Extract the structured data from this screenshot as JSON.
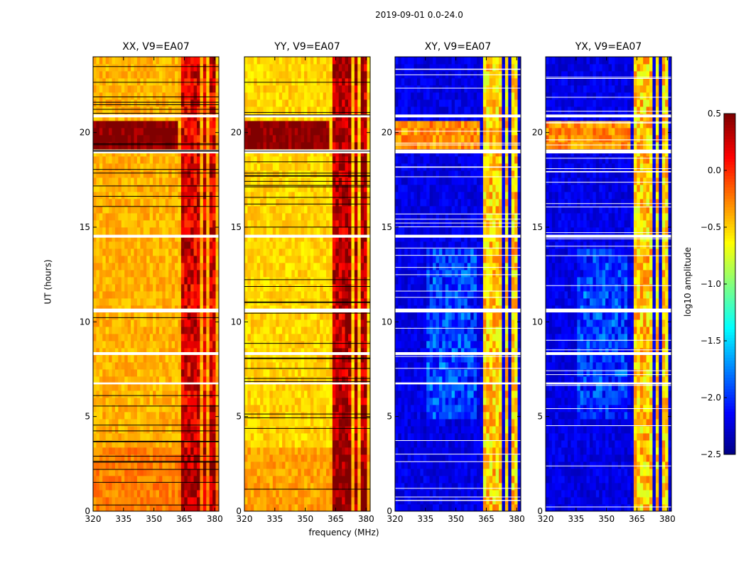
{
  "figure": {
    "suptitle": "2019-09-01 0.0-24.0",
    "ylabel": "UT (hours)",
    "xlabel": "frequency (MHz)",
    "colorbar_label": "log10 amplitude",
    "colorbar_ticks": [
      "0.5",
      "0.0",
      "−0.5",
      "−1.0",
      "−1.5",
      "−2.0",
      "−2.5"
    ]
  },
  "chart_data": {
    "type": "heatmap",
    "colormap": "jet",
    "color_range": [
      -2.5,
      0.5
    ],
    "x_range": [
      320,
      382
    ],
    "y_range": [
      0,
      24
    ],
    "x_ticks": [
      320,
      335,
      350,
      365,
      380
    ],
    "y_ticks": [
      0,
      5,
      10,
      15,
      20
    ],
    "flag_gaps_hours": [
      [
        10.5,
        10.7
      ],
      [
        14.45,
        14.6
      ],
      [
        18.9,
        19.1
      ],
      [
        20.8,
        20.95
      ],
      [
        8.25,
        8.4
      ],
      [
        6.7,
        6.8
      ]
    ],
    "panels": [
      {
        "title": "XX, V9=EA07",
        "baseline_log_amp": -0.4,
        "band_log_amp": 0.1,
        "rfi_day_log_amp": 0.5
      },
      {
        "title": "YY, V9=EA07",
        "baseline_log_amp": -0.5,
        "band_log_amp": 0.2,
        "rfi_day_log_amp": 0.5
      },
      {
        "title": "XY, V9=EA07",
        "baseline_log_amp": -2.2,
        "band_log_amp": -0.6,
        "rfi_day_log_amp": -0.3
      },
      {
        "title": "YX, V9=EA07",
        "baseline_log_amp": -2.2,
        "band_log_amp": -0.6,
        "rfi_day_log_amp": -0.3
      }
    ],
    "bright_band_MHz": [
      [
        363,
        366
      ],
      [
        367,
        369.5
      ],
      [
        370,
        373
      ],
      [
        374,
        376
      ],
      [
        378,
        380
      ]
    ]
  }
}
